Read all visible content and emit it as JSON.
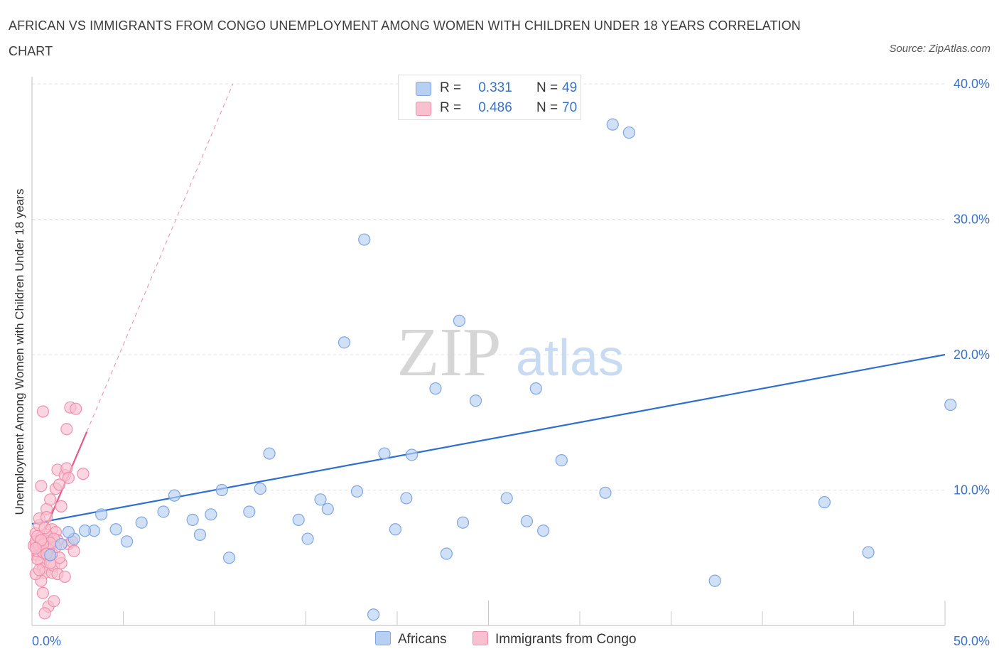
{
  "title": "AFRICAN VS IMMIGRANTS FROM CONGO UNEMPLOYMENT AMONG WOMEN WITH CHILDREN UNDER 18 YEARS CORRELATION CHART",
  "source": "Source: ZipAtlas.com",
  "watermark": {
    "zip": "ZIP",
    "atlas": "atlas"
  },
  "legend": {
    "rows": [
      {
        "r_label": "R =",
        "r_value": "0.331",
        "n_label": "N =",
        "n_value": "49"
      },
      {
        "r_label": "R =",
        "r_value": "0.486",
        "n_label": "N =",
        "n_value": "70"
      }
    ]
  },
  "colors": {
    "africans_fill": "#b7cff2",
    "africans_stroke": "#7fa6e0",
    "africans_line": "#2d6fcf",
    "congo_fill": "#f9c0d0",
    "congo_stroke": "#f08fac",
    "congo_line": "#e8598a",
    "axis_text": "#3a72c9",
    "grid": "#e3e3e3"
  },
  "chart_data": {
    "type": "scatter",
    "title": "AFRICAN VS IMMIGRANTS FROM CONGO UNEMPLOYMENT AMONG WOMEN WITH CHILDREN UNDER 18 YEARS CORRELATION CHART",
    "xlabel": "",
    "ylabel": "Unemployment Among Women with Children Under 18 years",
    "xlim": [
      0,
      50
    ],
    "ylim": [
      0,
      40
    ],
    "x_tick_labels": [
      "0.0%",
      "50.0%"
    ],
    "y_tick_labels": [
      "10.0%",
      "20.0%",
      "30.0%",
      "40.0%"
    ],
    "y_ticks": [
      10,
      20,
      30,
      40
    ],
    "grid": true,
    "legend_position": "top-center",
    "series": [
      {
        "name": "Africans",
        "points": [
          [
            2.3,
            6.4
          ],
          [
            3.4,
            7.0
          ],
          [
            2.9,
            7.0
          ],
          [
            3.8,
            8.2
          ],
          [
            4.6,
            7.1
          ],
          [
            5.2,
            6.2
          ],
          [
            6.0,
            7.6
          ],
          [
            7.2,
            8.4
          ],
          [
            7.8,
            9.6
          ],
          [
            8.8,
            7.8
          ],
          [
            9.2,
            6.7
          ],
          [
            9.8,
            8.2
          ],
          [
            10.4,
            10.0
          ],
          [
            10.8,
            5.0
          ],
          [
            11.9,
            8.4
          ],
          [
            12.5,
            10.1
          ],
          [
            13.0,
            12.7
          ],
          [
            14.6,
            7.8
          ],
          [
            15.1,
            6.4
          ],
          [
            15.8,
            9.3
          ],
          [
            16.2,
            8.6
          ],
          [
            17.1,
            20.9
          ],
          [
            17.8,
            9.9
          ],
          [
            18.2,
            28.5
          ],
          [
            18.7,
            0.8
          ],
          [
            19.3,
            12.7
          ],
          [
            19.9,
            7.1
          ],
          [
            20.5,
            9.4
          ],
          [
            20.8,
            12.6
          ],
          [
            22.1,
            17.5
          ],
          [
            22.7,
            5.3
          ],
          [
            23.4,
            22.5
          ],
          [
            23.6,
            7.6
          ],
          [
            24.3,
            16.6
          ],
          [
            26.0,
            9.4
          ],
          [
            27.1,
            7.7
          ],
          [
            27.6,
            17.5
          ],
          [
            28.0,
            7.0
          ],
          [
            29.0,
            12.2
          ],
          [
            31.4,
            9.8
          ],
          [
            31.8,
            37.0
          ],
          [
            32.7,
            36.4
          ],
          [
            37.4,
            3.3
          ],
          [
            43.4,
            9.1
          ],
          [
            45.8,
            5.4
          ],
          [
            50.3,
            16.3
          ],
          [
            1.0,
            5.2
          ],
          [
            1.6,
            6.0
          ],
          [
            2.0,
            6.9
          ]
        ]
      },
      {
        "name": "Immigrants from Congo",
        "points": [
          [
            0.2,
            6.0
          ],
          [
            0.3,
            5.2
          ],
          [
            0.4,
            5.6
          ],
          [
            0.5,
            4.7
          ],
          [
            0.6,
            5.9
          ],
          [
            0.2,
            6.8
          ],
          [
            0.4,
            7.4
          ],
          [
            0.7,
            6.3
          ],
          [
            0.8,
            5.5
          ],
          [
            0.3,
            4.9
          ],
          [
            0.9,
            6.2
          ],
          [
            1.0,
            5.8
          ],
          [
            1.1,
            7.1
          ],
          [
            0.6,
            4.2
          ],
          [
            0.7,
            3.9
          ],
          [
            0.5,
            3.3
          ],
          [
            0.6,
            2.4
          ],
          [
            0.9,
            1.4
          ],
          [
            0.7,
            0.9
          ],
          [
            1.2,
            1.8
          ],
          [
            0.8,
            8.6
          ],
          [
            1.0,
            9.3
          ],
          [
            1.3,
            10.1
          ],
          [
            1.4,
            11.5
          ],
          [
            1.5,
            10.4
          ],
          [
            1.6,
            8.8
          ],
          [
            1.8,
            11.1
          ],
          [
            1.9,
            11.6
          ],
          [
            2.0,
            10.9
          ],
          [
            0.5,
            10.3
          ],
          [
            0.6,
            15.8
          ],
          [
            1.9,
            14.5
          ],
          [
            2.1,
            16.1
          ],
          [
            2.4,
            16.0
          ],
          [
            2.8,
            11.2
          ],
          [
            1.1,
            3.9
          ],
          [
            1.2,
            4.4
          ],
          [
            1.4,
            3.8
          ],
          [
            1.6,
            4.6
          ],
          [
            1.8,
            3.6
          ],
          [
            2.0,
            6.0
          ],
          [
            2.2,
            6.2
          ],
          [
            2.3,
            5.5
          ],
          [
            0.4,
            7.9
          ],
          [
            0.8,
            8.0
          ],
          [
            1.3,
            6.9
          ],
          [
            1.4,
            6.3
          ],
          [
            1.5,
            5.0
          ],
          [
            0.2,
            3.8
          ],
          [
            0.3,
            5.5
          ],
          [
            0.1,
            5.9
          ],
          [
            0.2,
            6.2
          ],
          [
            0.4,
            5.9
          ],
          [
            0.5,
            6.5
          ],
          [
            0.6,
            5.4
          ],
          [
            0.8,
            6.7
          ],
          [
            0.9,
            5.1
          ],
          [
            1.0,
            4.6
          ],
          [
            1.1,
            5.3
          ],
          [
            1.2,
            6.4
          ],
          [
            1.3,
            5.8
          ],
          [
            0.3,
            6.6
          ],
          [
            0.7,
            7.2
          ],
          [
            0.4,
            4.1
          ],
          [
            0.9,
            5.6
          ],
          [
            1.0,
            6.1
          ],
          [
            0.6,
            6.0
          ],
          [
            0.5,
            6.3
          ],
          [
            0.8,
            5.3
          ],
          [
            0.2,
            5.7
          ]
        ]
      }
    ],
    "trendlines": [
      {
        "series": "Africans",
        "x": [
          0,
          50
        ],
        "y": [
          7.5,
          20.0
        ],
        "style": "solid"
      },
      {
        "series": "Immigrants from Congo",
        "x": [
          0,
          3.0
        ],
        "y": [
          4.8,
          14.3
        ],
        "style": "solid"
      },
      {
        "series": "Immigrants from Congo",
        "x": [
          3.0,
          11.0
        ],
        "y": [
          14.3,
          40.0
        ],
        "style": "dashed"
      }
    ]
  }
}
